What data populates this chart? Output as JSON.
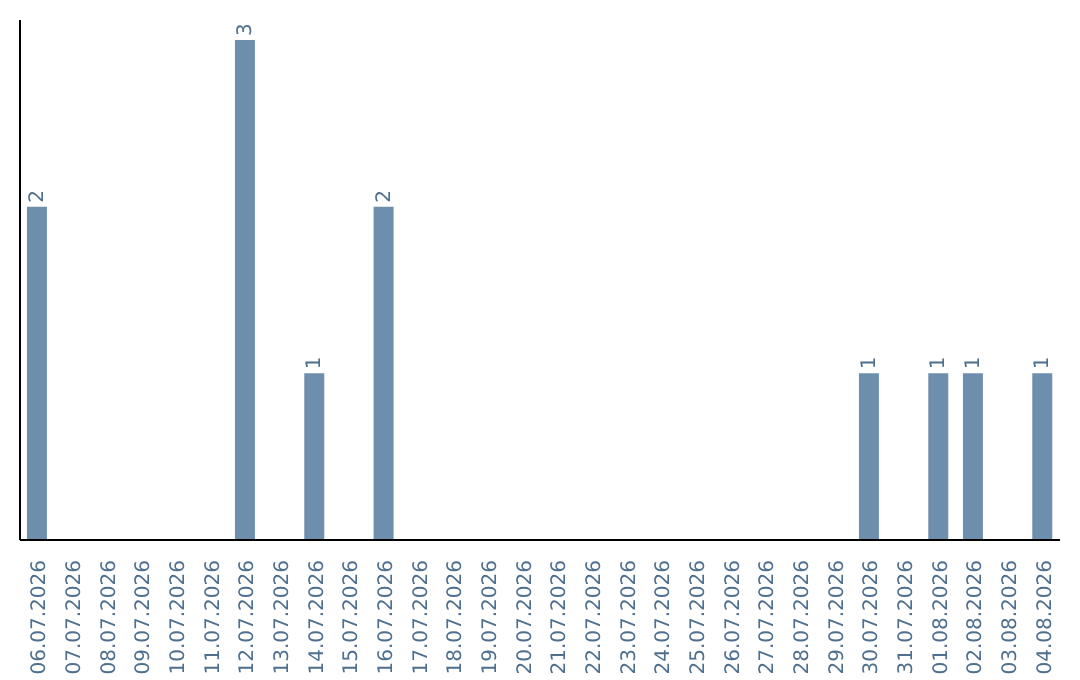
{
  "chart_data": {
    "type": "bar",
    "categories": [
      "06.07.2026",
      "07.07.2026",
      "08.07.2026",
      "09.07.2026",
      "10.07.2026",
      "11.07.2026",
      "12.07.2026",
      "13.07.2026",
      "14.07.2026",
      "15.07.2026",
      "16.07.2026",
      "17.07.2026",
      "18.07.2026",
      "19.07.2026",
      "20.07.2026",
      "21.07.2026",
      "22.07.2026",
      "23.07.2026",
      "24.07.2026",
      "25.07.2026",
      "26.07.2026",
      "27.07.2026",
      "28.07.2026",
      "29.07.2026",
      "30.07.2026",
      "31.07.2026",
      "01.08.2026",
      "02.08.2026",
      "03.08.2026",
      "04.08.2026"
    ],
    "values": [
      2,
      0,
      0,
      0,
      0,
      0,
      3,
      0,
      1,
      0,
      2,
      0,
      0,
      0,
      0,
      0,
      0,
      0,
      0,
      0,
      0,
      0,
      0,
      0,
      1,
      0,
      1,
      1,
      0,
      1
    ],
    "value_labels": [
      "2",
      null,
      null,
      null,
      null,
      null,
      "3",
      null,
      "1",
      null,
      "2",
      null,
      null,
      null,
      null,
      null,
      null,
      null,
      null,
      null,
      null,
      null,
      null,
      null,
      "1",
      null,
      "1",
      "1",
      null,
      "1"
    ],
    "color": "#6d8fad",
    "tick_labels": "x"
  }
}
